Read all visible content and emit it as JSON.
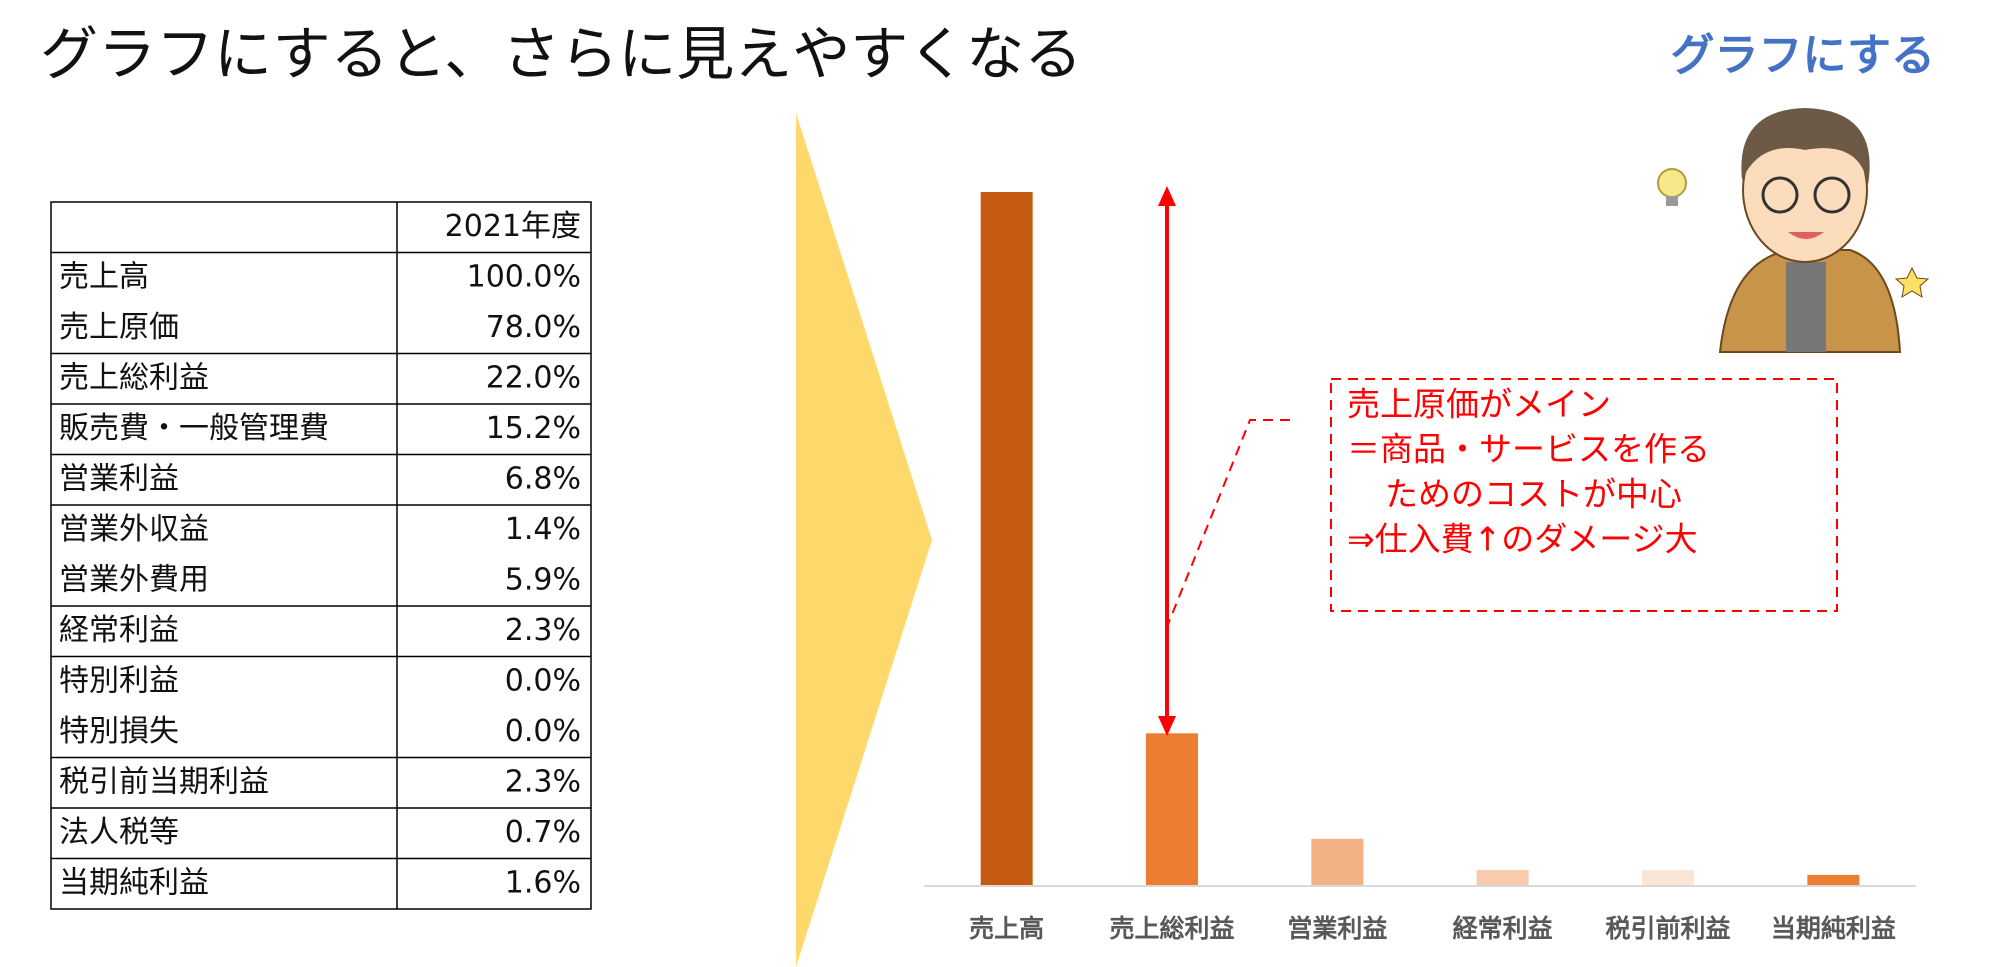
{
  "title": "グラフにすると、さらに見えやすくなる",
  "badge": "グラフにする",
  "table": {
    "header": [
      "",
      "2021年度"
    ],
    "rows": [
      [
        "売上高",
        "100.0%"
      ],
      [
        "売上原価",
        "78.0%"
      ],
      [
        "売上総利益",
        "22.0%"
      ],
      [
        "販売費・一般管理費",
        "15.2%"
      ],
      [
        "営業利益",
        "6.8%"
      ],
      [
        "営業外収益",
        "1.4%"
      ],
      [
        "営業外費用",
        "5.9%"
      ],
      [
        "経常利益",
        "2.3%"
      ],
      [
        "特別利益",
        "0.0%"
      ],
      [
        "特別損失",
        "0.0%"
      ],
      [
        "税引前当期利益",
        "2.3%"
      ],
      [
        "法人税等",
        "0.7%"
      ],
      [
        "当期純利益",
        "1.6%"
      ]
    ]
  },
  "callout": {
    "lines": [
      "売上原価がメイン",
      "＝商品・サービスを作る",
      "ためのコストが中心",
      "⇒仕入費↑のダメージ大"
    ]
  },
  "chart_data": {
    "type": "bar",
    "categories": [
      "売上高",
      "売上総利益",
      "営業利益",
      "経常利益",
      "税引前利益",
      "当期純利益"
    ],
    "values": [
      100,
      22,
      6.8,
      2.3,
      2.3,
      1.6
    ],
    "colors": [
      "#c55a11",
      "#ed7d31",
      "#f4b183",
      "#f8cbad",
      "#fbe5d6",
      "#ed7d31"
    ],
    "ylim": [
      0,
      100
    ]
  }
}
